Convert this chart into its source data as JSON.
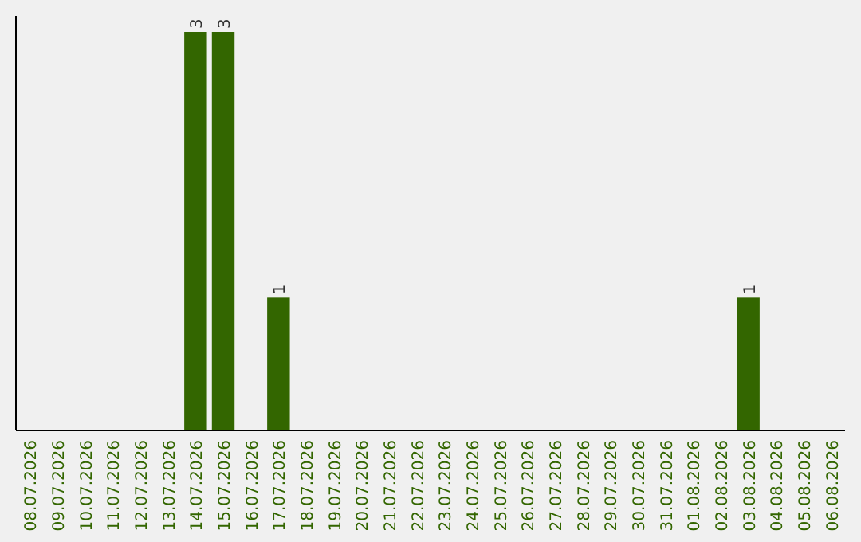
{
  "chart_data": {
    "type": "bar",
    "categories": [
      "08.07.2026",
      "09.07.2026",
      "10.07.2026",
      "11.07.2026",
      "12.07.2026",
      "13.07.2026",
      "14.07.2026",
      "15.07.2026",
      "16.07.2026",
      "17.07.2026",
      "18.07.2026",
      "19.07.2026",
      "20.07.2026",
      "21.07.2026",
      "22.07.2026",
      "23.07.2026",
      "24.07.2026",
      "25.07.2026",
      "26.07.2026",
      "27.07.2026",
      "28.07.2026",
      "29.07.2026",
      "30.07.2026",
      "31.07.2026",
      "01.08.2026",
      "02.08.2026",
      "03.08.2026",
      "04.08.2026",
      "05.08.2026",
      "06.08.2026"
    ],
    "values": [
      0,
      0,
      0,
      0,
      0,
      0,
      3,
      3,
      0,
      1,
      0,
      0,
      0,
      0,
      0,
      0,
      0,
      0,
      0,
      0,
      0,
      0,
      0,
      0,
      0,
      0,
      1,
      0,
      0,
      0
    ],
    "value_labels": [
      null,
      null,
      null,
      null,
      null,
      null,
      "3",
      "3",
      null,
      "1",
      null,
      null,
      null,
      null,
      null,
      null,
      null,
      null,
      null,
      null,
      null,
      null,
      null,
      null,
      null,
      null,
      "1",
      null,
      null,
      null
    ],
    "color": "#336600"
  }
}
